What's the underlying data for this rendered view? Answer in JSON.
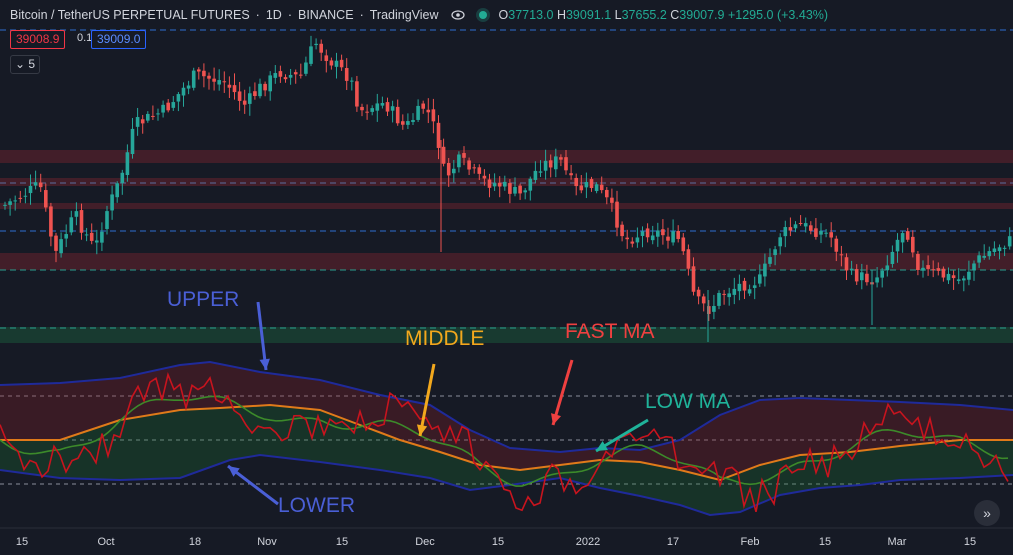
{
  "header": {
    "symbol": "Bitcoin / TetherUS PERPETUAL FUTURES",
    "interval": "1D",
    "exchange": "BINANCE",
    "platform": "TradingView",
    "ohlc": {
      "o": "37713.0",
      "h": "39091.1",
      "l": "37655.2",
      "c": "39007.9",
      "change": "+1295.0 (+3.43%)"
    }
  },
  "trade": {
    "sell_price": "39008.9",
    "spread": "0.1",
    "buy_price": "39009.0"
  },
  "collapse": {
    "label": "5",
    "icon": "chevron-down-icon"
  },
  "x_axis": {
    "ticks": [
      {
        "label": "15"
      },
      {
        "label": "Oct"
      },
      {
        "label": "18"
      },
      {
        "label": "Nov"
      },
      {
        "label": "15"
      },
      {
        "label": "Dec"
      },
      {
        "label": "15"
      },
      {
        "label": "2022"
      },
      {
        "label": "17"
      },
      {
        "label": "Feb"
      },
      {
        "label": "15"
      },
      {
        "label": "Mar"
      },
      {
        "label": "15"
      }
    ]
  },
  "annotations": {
    "upper": "UPPER",
    "middle": "MIDDLE",
    "fast_ma": "FAST MA",
    "low_ma": "LOW MA",
    "lower": "LOWER"
  },
  "colors": {
    "bull": "#26a69a",
    "bear": "#ef5350",
    "upper": "#4a5fd6",
    "middle": "#f2a81d",
    "fast": "#ef4040",
    "low": "#1fb39a",
    "lower": "#4a5fd6",
    "fast_ma_line": "#c8141e",
    "slow_ma_line": "#3c8a2a",
    "band_line": "#1f2a9a",
    "mid_line": "#e07a1a"
  },
  "chart_data": {
    "type": "candlestick",
    "x": [
      "Sep 15",
      "Oct",
      "Oct 18",
      "Nov",
      "Nov 15",
      "Dec",
      "Dec 15",
      "2022",
      "Jan 17",
      "Feb",
      "Feb 15",
      "Mar",
      "Mar 15"
    ],
    "close": [
      47000,
      42500,
      61500,
      61000,
      59500,
      49000,
      47500,
      47000,
      42000,
      38000,
      43500,
      41000,
      39008
    ],
    "last_price": 39007.9,
    "indicator": {
      "name": "Bands with moving averages",
      "series": [
        "UPPER",
        "MIDDLE",
        "LOWER",
        "FAST MA",
        "LOW MA"
      ]
    },
    "grid": false
  },
  "goto": {
    "icon": "double-chevron-right-icon"
  }
}
